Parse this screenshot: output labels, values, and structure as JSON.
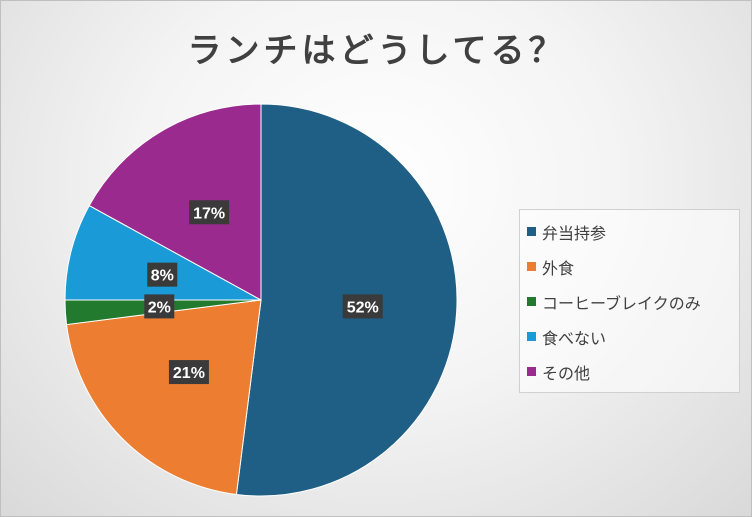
{
  "chart_data": {
    "type": "pie",
    "title": "ランチはどうしてる？",
    "categories": [
      "弁当持参",
      "外食",
      "コーヒーブレイクのみ",
      "食べない",
      "その他"
    ],
    "values": [
      52,
      21,
      2,
      8,
      17
    ],
    "labels": [
      "52%",
      "21%",
      "2%",
      "8%",
      "17%"
    ],
    "colors": [
      "#1f5f86",
      "#ed7d31",
      "#217a2d",
      "#1a9ad6",
      "#9b2a8f"
    ],
    "legend_position": "right"
  }
}
